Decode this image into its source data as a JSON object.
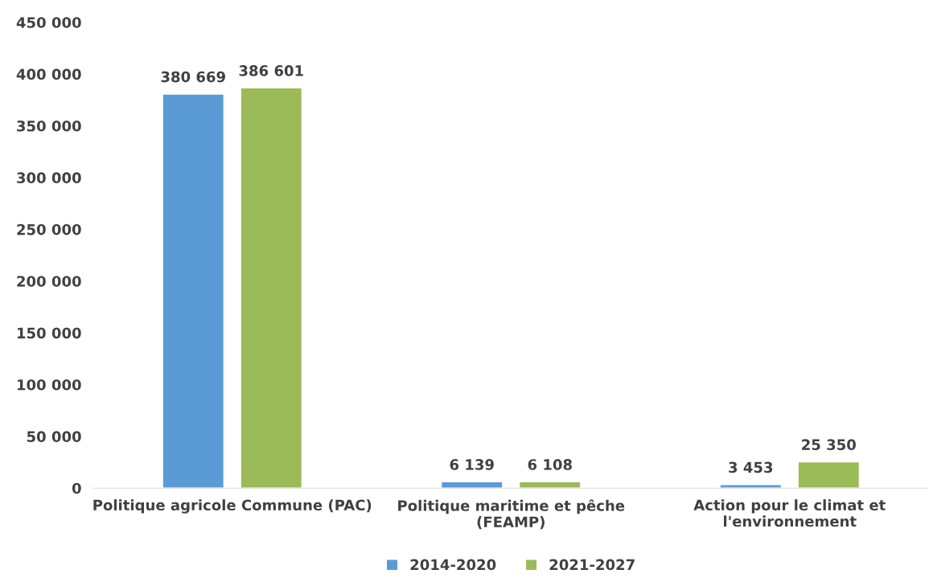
{
  "chart_data": {
    "type": "bar",
    "categories": [
      "Politique agricole Commune (PAC)",
      "Politique maritime et pêche\n(FEAMP)",
      "Action pour le climat et\nl'environnement"
    ],
    "series": [
      {
        "name": "2014-2020",
        "color": "#5b9bd5",
        "values": [
          380669,
          6139,
          3453
        ],
        "value_labels": [
          "380 669",
          "6 139",
          "3 453"
        ]
      },
      {
        "name": "2021-2027",
        "color": "#9bbb59",
        "values": [
          386601,
          6108,
          25350
        ],
        "value_labels": [
          "386 601",
          "6 108",
          "25 350"
        ]
      }
    ],
    "ylim": [
      0,
      450000
    ],
    "yticks": [
      {
        "value": 0,
        "label": "0"
      },
      {
        "value": 50000,
        "label": "50 000"
      },
      {
        "value": 100000,
        "label": "100 000"
      },
      {
        "value": 150000,
        "label": "150 000"
      },
      {
        "value": 200000,
        "label": "200 000"
      },
      {
        "value": 250000,
        "label": "250 000"
      },
      {
        "value": 300000,
        "label": "300 000"
      },
      {
        "value": 350000,
        "label": "350 000"
      },
      {
        "value": 400000,
        "label": "400 000"
      },
      {
        "value": 450000,
        "label": "450 000"
      }
    ],
    "grid": false,
    "legend": "bottom"
  }
}
